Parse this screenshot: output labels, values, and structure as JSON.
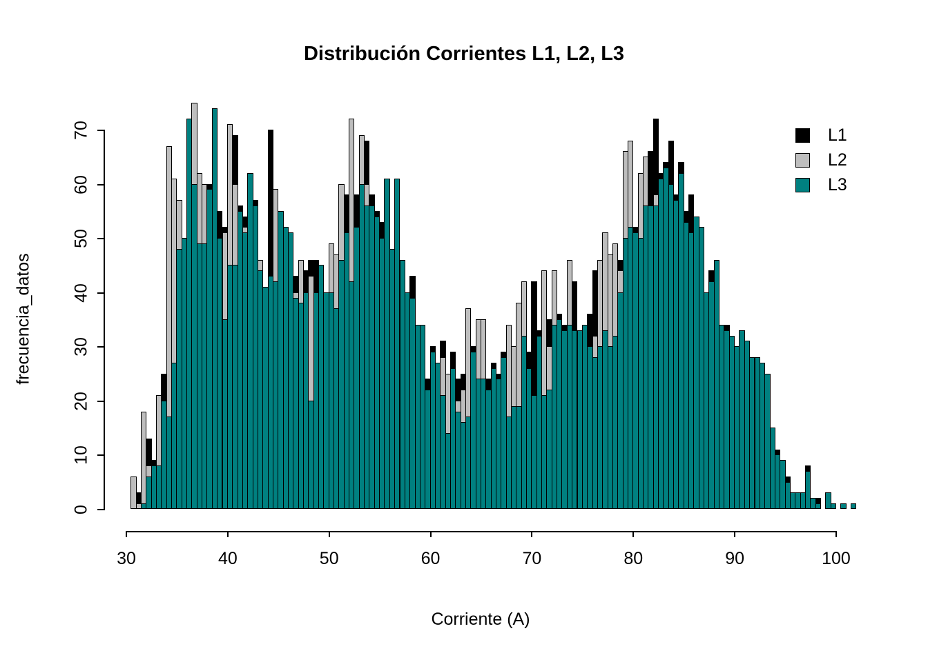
{
  "title": "Distribución Corrientes L1, L2, L3",
  "xlabel": "Corriente (A)",
  "ylabel": "frecuencia_datos",
  "legend": [
    {
      "label": "L1",
      "color": "#000000"
    },
    {
      "label": "L2",
      "color": "#BEBEBE"
    },
    {
      "label": "L3",
      "color": "#008080"
    }
  ],
  "axes": {
    "x_ticks": [
      "30",
      "40",
      "50",
      "60",
      "70",
      "80",
      "90",
      "100"
    ],
    "y_ticks": [
      "0",
      "10",
      "20",
      "30",
      "40",
      "50",
      "60",
      "70"
    ]
  },
  "chart_data": {
    "type": "bar",
    "subtype": "overlaid-histograms",
    "title": "Distribución Corrientes L1, L2, L3",
    "xlabel": "Corriente (A)",
    "ylabel": "frecuencia_datos",
    "xlim": [
      30,
      102
    ],
    "ylim": [
      0,
      70
    ],
    "grid": false,
    "legend_position": "top-right",
    "bin_start": 30.5,
    "bin_width": 0.5,
    "draw_order": [
      "L1",
      "L2",
      "L3"
    ],
    "series": [
      {
        "name": "L1",
        "color": "#000000",
        "values": [
          3,
          3,
          13,
          13,
          9,
          21,
          25,
          47,
          54,
          56,
          50,
          52,
          59,
          59,
          57,
          60,
          62,
          55,
          52,
          65,
          69,
          56,
          54,
          58,
          57,
          45,
          40,
          70,
          51,
          55,
          50,
          48,
          43,
          42,
          44,
          46,
          46,
          45,
          40,
          42,
          44,
          52,
          58,
          67,
          58,
          69,
          68,
          58,
          55,
          53,
          57,
          46,
          57,
          44,
          40,
          43,
          32,
          32,
          24,
          30,
          26,
          31,
          24,
          29,
          24,
          25,
          20,
          30,
          32,
          31,
          24,
          27,
          25,
          29,
          20,
          22,
          20,
          33,
          29,
          42,
          33,
          35,
          35,
          38,
          36,
          34,
          40,
          42,
          31,
          34,
          36,
          44,
          45,
          50,
          44,
          46,
          46,
          50,
          52,
          52,
          54,
          58,
          66,
          72,
          62,
          64,
          68,
          58,
          64,
          55,
          58,
          52,
          50,
          38,
          44,
          44,
          32,
          34,
          31,
          28,
          33,
          29,
          26,
          28,
          27,
          24,
          14,
          11,
          6,
          6,
          3,
          3,
          2,
          8,
          2,
          2,
          0,
          3,
          1,
          0,
          1,
          0,
          1
        ]
      },
      {
        "name": "L2",
        "color": "#BEBEBE",
        "values": [
          6,
          1,
          18,
          8,
          4,
          21,
          16,
          67,
          61,
          57,
          45,
          48,
          75,
          62,
          60,
          55,
          58,
          48,
          51,
          71,
          60,
          50,
          52,
          55,
          50,
          46,
          41,
          40,
          59,
          52,
          48,
          45,
          40,
          46,
          40,
          43,
          40,
          42,
          38,
          49,
          47,
          60,
          50,
          72,
          52,
          69,
          60,
          54,
          50,
          48,
          52,
          44,
          50,
          42,
          38,
          36,
          30,
          28,
          20,
          26,
          24,
          28,
          25,
          24,
          20,
          22,
          37,
          26,
          35,
          35,
          20,
          24,
          22,
          26,
          34,
          30,
          38,
          42,
          25,
          20,
          30,
          44,
          30,
          44,
          30,
          28,
          46,
          30,
          28,
          30,
          28,
          32,
          46,
          51,
          47,
          49,
          44,
          66,
          68,
          48,
          62,
          65,
          56,
          58,
          55,
          56,
          54,
          52,
          50,
          48,
          46,
          44,
          42,
          36,
          38,
          40,
          30,
          28,
          26,
          24,
          26,
          24,
          22,
          20,
          18,
          16,
          10,
          8,
          4,
          2,
          2,
          1,
          1,
          1,
          0,
          0,
          0,
          0,
          0,
          0,
          0,
          0,
          0
        ]
      },
      {
        "name": "L3",
        "color": "#008080",
        "values": [
          0,
          0,
          1,
          6,
          8,
          8,
          20,
          17,
          27,
          48,
          50,
          72,
          60,
          49,
          49,
          59,
          74,
          50,
          35,
          45,
          45,
          55,
          51,
          62,
          56,
          44,
          41,
          43,
          42,
          55,
          52,
          51,
          39,
          38,
          40,
          20,
          40,
          45,
          40,
          40,
          37,
          46,
          51,
          42,
          52,
          60,
          56,
          56,
          54,
          50,
          61,
          48,
          61,
          46,
          40,
          39,
          34,
          34,
          22,
          29,
          27,
          21,
          14,
          26,
          18,
          16,
          17,
          29,
          24,
          24,
          22,
          26,
          24,
          28,
          17,
          19,
          19,
          32,
          26,
          21,
          32,
          21,
          22,
          34,
          35,
          33,
          34,
          33,
          33,
          34,
          30,
          28,
          30,
          33,
          30,
          32,
          40,
          50,
          52,
          51,
          50,
          56,
          56,
          56,
          61,
          63,
          60,
          57,
          62,
          53,
          51,
          54,
          52,
          40,
          42,
          46,
          34,
          33,
          32,
          30,
          33,
          31,
          28,
          28,
          27,
          25,
          15,
          10,
          9,
          5,
          3,
          3,
          3,
          7,
          2,
          1,
          0,
          3,
          1,
          0,
          1,
          0,
          1
        ]
      }
    ]
  }
}
